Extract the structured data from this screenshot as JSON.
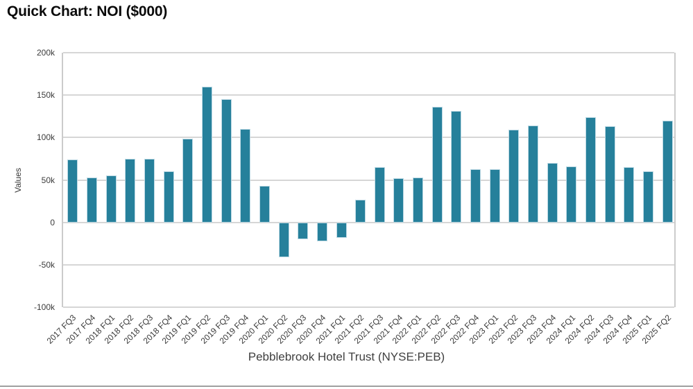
{
  "chart_data": {
    "type": "bar",
    "title": "Quick Chart: NOI ($000)",
    "xlabel": "Pebblebrook Hotel Trust (NYSE:PEB)",
    "ylabel": "Values",
    "categories": [
      "2017 FQ3",
      "2017 FQ4",
      "2018 FQ1",
      "2018 FQ2",
      "2018 FQ3",
      "2018 FQ4",
      "2019 FQ1",
      "2019 FQ2",
      "2019 FQ3",
      "2019 FQ4",
      "2020 FQ1",
      "2020 FQ2",
      "2020 FQ3",
      "2020 FQ4",
      "2021 FQ1",
      "2021 FQ2",
      "2021 FQ3",
      "2021 FQ4",
      "2022 FQ1",
      "2022 FQ2",
      "2022 FQ3",
      "2022 FQ4",
      "2023 FQ1",
      "2023 FQ2",
      "2023 FQ3",
      "2023 FQ4",
      "2024 FQ1",
      "2024 FQ2",
      "2024 FQ3",
      "2024 FQ4",
      "2025 FQ1",
      "2025 FQ2"
    ],
    "values": [
      74000,
      53000,
      55000,
      75000,
      75000,
      60000,
      99000,
      160000,
      145000,
      110000,
      43000,
      -41000,
      -20000,
      -22000,
      -18000,
      27000,
      65000,
      52000,
      53000,
      136000,
      131000,
      63000,
      63000,
      109000,
      114000,
      70000,
      66000,
      124000,
      113000,
      65000,
      60000,
      120000
    ],
    "ylim": [
      -100000,
      200000
    ],
    "ytick_values": [
      200000,
      150000,
      100000,
      50000,
      0,
      -50000,
      -100000
    ],
    "ytick_labels": [
      "200k",
      "150k",
      "100k",
      "50k",
      "0",
      "-50k",
      "-100k"
    ],
    "grid": true,
    "legend": "none",
    "bar_color": "#26809b",
    "bar_edge_color": "#bdd9e4",
    "gridline_color": "#d6d6d6",
    "divider_color": "#9f9f9f"
  }
}
